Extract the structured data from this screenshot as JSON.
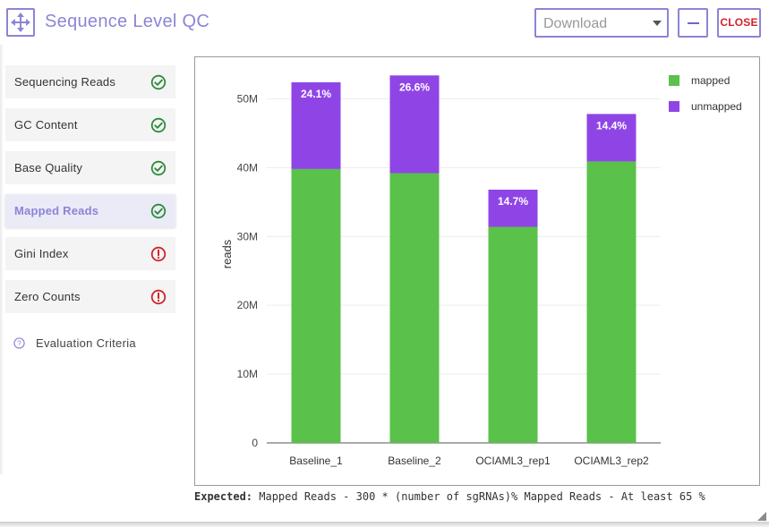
{
  "header": {
    "title": "Sequence Level QC",
    "download_label": "Download",
    "minimize_label": "—",
    "close_label": "CLOSE"
  },
  "sidebar": {
    "items": [
      {
        "label": "Sequencing Reads",
        "status": "pass",
        "icon": "check-circle-icon"
      },
      {
        "label": "GC Content",
        "status": "pass",
        "icon": "check-circle-icon"
      },
      {
        "label": "Base Quality",
        "status": "pass",
        "icon": "check-circle-icon"
      },
      {
        "label": "Mapped Reads",
        "status": "pass",
        "icon": "check-circle-icon",
        "active": true
      },
      {
        "label": "Gini Index",
        "status": "fail",
        "icon": "alert-circle-icon"
      },
      {
        "label": "Zero Counts",
        "status": "fail",
        "icon": "alert-circle-icon"
      }
    ],
    "evaluation_label": "Evaluation Criteria",
    "evaluation_icon": "question-circle-icon"
  },
  "colors": {
    "accent": "#8b85d6",
    "mapped": "#5ac14a",
    "unmapped": "#8f45e6",
    "pass": "#2e8b3a",
    "fail": "#d2232a"
  },
  "chart_data": {
    "type": "bar",
    "stacked": true,
    "categories": [
      "Baseline_1",
      "Baseline_2",
      "OCIAML3_rep1",
      "OCIAML3_rep2"
    ],
    "series": [
      {
        "name": "mapped",
        "values": [
          39.8,
          39.2,
          31.4,
          40.9
        ]
      },
      {
        "name": "unmapped",
        "values": [
          12.6,
          14.2,
          5.4,
          6.9
        ]
      }
    ],
    "data_labels": [
      "24.1%",
      "26.6%",
      "14.7%",
      "14.4%"
    ],
    "ylabel": "reads",
    "xlabel": "",
    "ylim": [
      0,
      55
    ],
    "yticks": [
      0,
      10,
      20,
      30,
      40,
      50
    ],
    "ytick_labels": [
      "0",
      "10M",
      "20M",
      "30M",
      "40M",
      "50M"
    ],
    "grid": true,
    "legend": "top-right"
  },
  "footer": {
    "expected_label": "Expected:",
    "expected_text": " Mapped Reads - 300 * (number of sgRNAs)% Mapped Reads - At least 65 %"
  }
}
